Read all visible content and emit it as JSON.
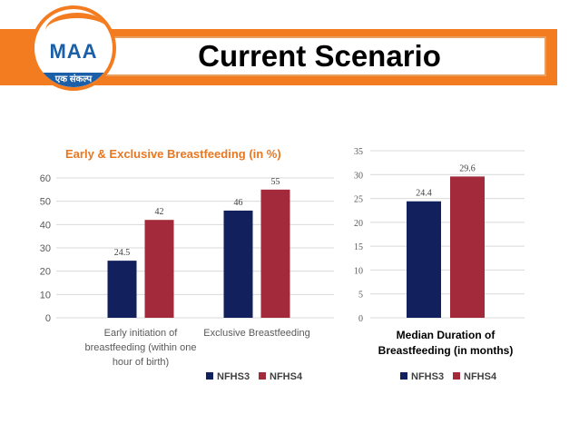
{
  "header": {
    "title": "Current Scenario",
    "logo": {
      "text": "MAA",
      "tagline": "एक संकल्प"
    }
  },
  "colors": {
    "nfhs3": "#13205e",
    "nfhs4": "#a32a3a",
    "accent": "#f47c20",
    "title_orange": "#e87722"
  },
  "chart_data": [
    {
      "type": "bar",
      "title": "Early & Exclusive Breastfeeding (in %)",
      "categories": [
        "Early initiation of breastfeeding (within one hour of birth)",
        "Exclusive Breastfeeding"
      ],
      "category_lines": [
        [
          "Early initiation of",
          "breastfeeding (within one",
          "hour of birth)"
        ],
        [
          "Exclusive Breastfeeding"
        ]
      ],
      "series": [
        {
          "name": "NFHS3",
          "values": [
            24.5,
            46
          ]
        },
        {
          "name": "NFHS4",
          "values": [
            42,
            55
          ]
        }
      ],
      "ylim": [
        0,
        60
      ],
      "yticks": [
        0,
        10,
        20,
        30,
        40,
        50,
        60
      ],
      "grid": true,
      "legend": "bottom"
    },
    {
      "type": "bar",
      "title": "",
      "categories": [
        "Median Duration of Breastfeeding (in months)"
      ],
      "category_lines": [
        [
          "Median Duration of",
          "Breastfeeding (in months)"
        ]
      ],
      "series": [
        {
          "name": "NFHS3",
          "values": [
            24.4
          ]
        },
        {
          "name": "NFHS4",
          "values": [
            29.6
          ]
        }
      ],
      "ylim": [
        0,
        35
      ],
      "yticks": [
        0,
        5,
        10,
        15,
        20,
        25,
        30,
        35
      ],
      "grid": true,
      "legend": "bottom"
    }
  ]
}
